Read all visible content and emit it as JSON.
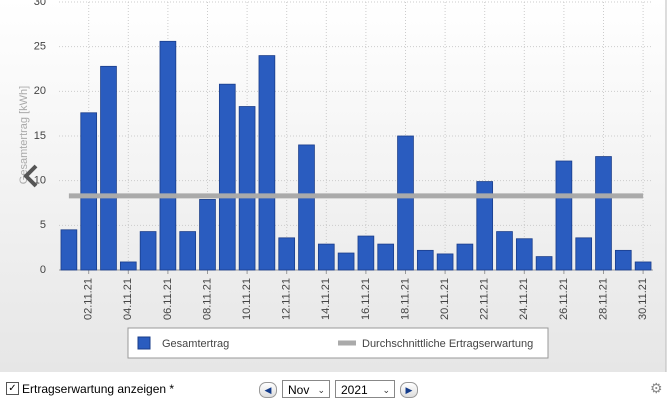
{
  "chart_data": {
    "type": "bar",
    "y_label": "Gesamtertrag [kWh]",
    "categories": [
      null,
      "02.11.21",
      null,
      "04.11.21",
      null,
      "06.11.21",
      null,
      "08.11.21",
      null,
      "10.11.21",
      null,
      "12.11.21",
      null,
      "14.11.21",
      null,
      "16.11.21",
      null,
      "18.11.21",
      null,
      "20.11.21",
      null,
      "22.11.21",
      null,
      "24.11.21",
      null,
      "26.11.21",
      null,
      "28.11.21",
      null,
      "30.11.21"
    ],
    "series": [
      {
        "name": "Gesamtertrag",
        "type": "bar",
        "color": "#2a5cbf",
        "values": [
          4.5,
          17.6,
          22.8,
          0.9,
          4.3,
          25.6,
          4.3,
          7.9,
          20.8,
          18.3,
          24.0,
          3.6,
          14.0,
          2.9,
          1.9,
          3.8,
          2.9,
          15.0,
          2.2,
          1.8,
          2.9,
          9.9,
          4.3,
          3.5,
          1.5,
          12.2,
          3.6,
          12.7,
          2.2,
          0.9
        ]
      },
      {
        "name": "Durchschnittliche Ertragserwartung",
        "type": "line",
        "color": "#aaaaaa",
        "values": [
          8.3,
          8.3,
          8.3,
          8.3,
          8.3,
          8.3,
          8.3,
          8.3,
          8.3,
          8.3,
          8.3,
          8.3,
          8.3,
          8.3,
          8.3,
          8.3,
          8.3,
          8.3,
          8.3,
          8.3,
          8.3,
          8.3,
          8.3,
          8.3,
          8.3,
          8.3,
          8.3,
          8.3,
          8.3,
          8.3
        ]
      }
    ],
    "ylim": [
      0,
      30
    ],
    "yticks": [
      0,
      5,
      10,
      15,
      20,
      25,
      30
    ],
    "grid": true
  },
  "controls": {
    "checkbox_label": "Ertragserwartung anzeigen *",
    "month": "Nov",
    "year": "2021"
  }
}
